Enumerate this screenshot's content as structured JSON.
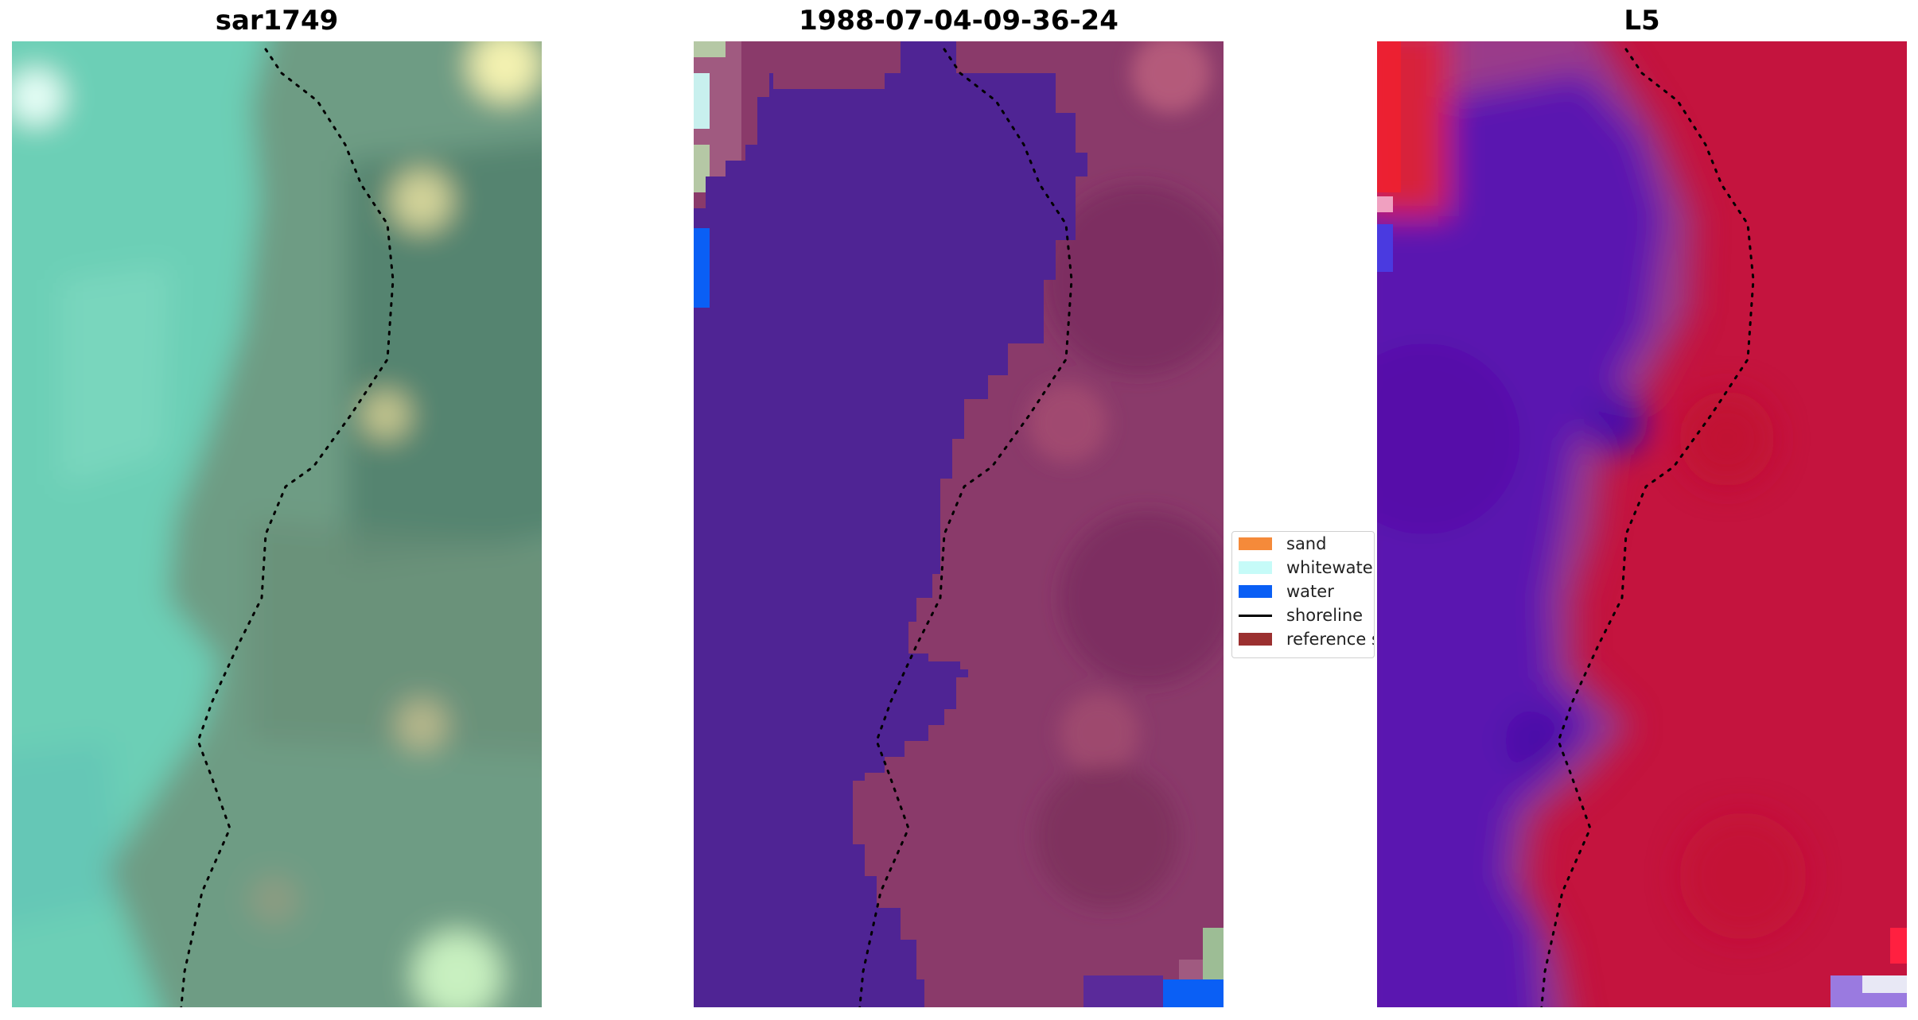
{
  "panels": [
    {
      "title": "sar1749",
      "kind": "rgb"
    },
    {
      "title": "1988-07-04-09-36-24",
      "kind": "classified"
    },
    {
      "title": "L5",
      "kind": "index"
    }
  ],
  "legend": {
    "items": [
      {
        "label": "sand",
        "color": "#f58a3a",
        "type": "patch"
      },
      {
        "label": "whitewater",
        "color": "#c6fbf8",
        "type": "patch"
      },
      {
        "label": "water",
        "color": "#0a5ff5",
        "type": "patch"
      },
      {
        "label": "shoreline",
        "color": "#000000",
        "type": "line"
      },
      {
        "label": "reference shoreline buffer",
        "color": "#9b3030",
        "type": "patch"
      }
    ]
  },
  "colors": {
    "water_class": "#4f2494",
    "land_class": "#8a3a6a",
    "index_water": "#5a14b0",
    "index_land": "#c4143e"
  }
}
